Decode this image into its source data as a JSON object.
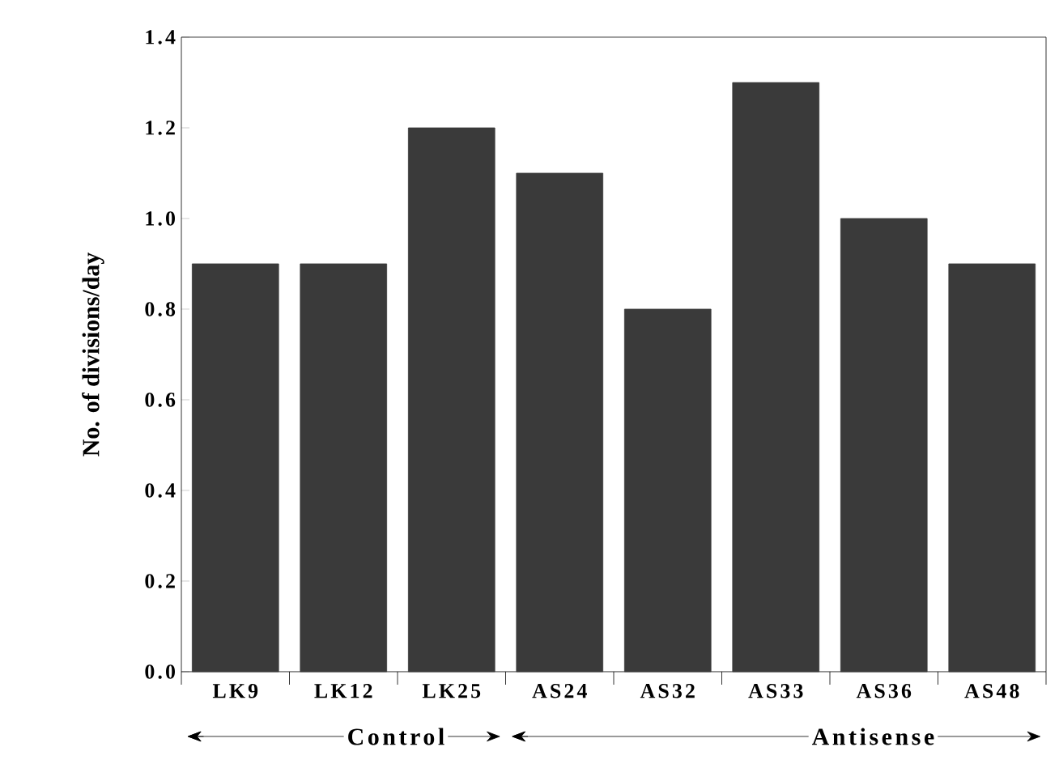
{
  "chart_data": {
    "type": "bar",
    "ylabel": "No. of divisions/day",
    "categories": [
      "LK9",
      "LK12",
      "LK25",
      "AS24",
      "AS32",
      "AS33",
      "AS36",
      "AS48"
    ],
    "values": [
      0.9,
      0.9,
      1.2,
      1.1,
      0.8,
      1.3,
      1.0,
      0.9
    ],
    "color": "#3a3a3a",
    "ylim": [
      0,
      1.4
    ],
    "yticks": [
      {
        "value": 0,
        "label": "0.0"
      },
      {
        "value": 0.2,
        "label": "0.2"
      },
      {
        "value": 0.4,
        "label": "0.4"
      },
      {
        "value": 0.6,
        "label": "0.6"
      },
      {
        "value": 0.8,
        "label": "0.8"
      },
      {
        "value": 1.0,
        "label": "1.0"
      },
      {
        "value": 1.2,
        "label": "1.2"
      },
      {
        "value": 1.4,
        "label": "1.4"
      }
    ],
    "annotations": [
      "Control",
      "Antisense"
    ]
  }
}
